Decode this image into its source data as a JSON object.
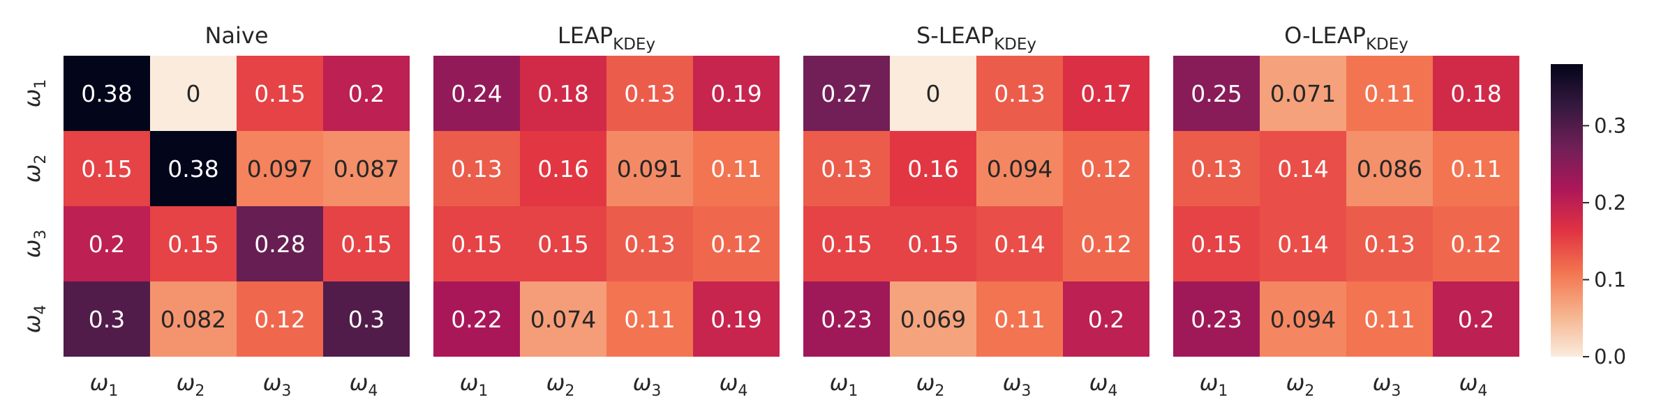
{
  "chart_data": [
    {
      "type": "heatmap",
      "title": "Naive",
      "title_main": "Naive",
      "title_sub": "",
      "x_tick_labels": [
        "ω1",
        "ω2",
        "ω3",
        "ω4"
      ],
      "y_tick_labels": [
        "ω1",
        "ω2",
        "ω3",
        "ω4"
      ],
      "values": [
        [
          0.38,
          0,
          0.15,
          0.2
        ],
        [
          0.15,
          0.38,
          0.097,
          0.087
        ],
        [
          0.2,
          0.15,
          0.28,
          0.15
        ],
        [
          0.3,
          0.082,
          0.12,
          0.3
        ]
      ],
      "cell_labels": [
        [
          "0.38",
          "0",
          "0.15",
          "0.2"
        ],
        [
          "0.15",
          "0.38",
          "0.097",
          "0.087"
        ],
        [
          "0.2",
          "0.15",
          "0.28",
          "0.15"
        ],
        [
          "0.3",
          "0.082",
          "0.12",
          "0.3"
        ]
      ]
    },
    {
      "type": "heatmap",
      "title": "LEAP_KDEy",
      "title_main": "LEAP",
      "title_sub": "KDEy",
      "x_tick_labels": [
        "ω1",
        "ω2",
        "ω3",
        "ω4"
      ],
      "y_tick_labels": [],
      "values": [
        [
          0.24,
          0.18,
          0.13,
          0.19
        ],
        [
          0.13,
          0.16,
          0.091,
          0.11
        ],
        [
          0.15,
          0.15,
          0.13,
          0.12
        ],
        [
          0.22,
          0.074,
          0.11,
          0.19
        ]
      ],
      "cell_labels": [
        [
          "0.24",
          "0.18",
          "0.13",
          "0.19"
        ],
        [
          "0.13",
          "0.16",
          "0.091",
          "0.11"
        ],
        [
          "0.15",
          "0.15",
          "0.13",
          "0.12"
        ],
        [
          "0.22",
          "0.074",
          "0.11",
          "0.19"
        ]
      ]
    },
    {
      "type": "heatmap",
      "title": "S-LEAP_KDEy",
      "title_main": "S-LEAP",
      "title_sub": "KDEy",
      "x_tick_labels": [
        "ω1",
        "ω2",
        "ω3",
        "ω4"
      ],
      "y_tick_labels": [],
      "values": [
        [
          0.27,
          0,
          0.13,
          0.17
        ],
        [
          0.13,
          0.16,
          0.094,
          0.12
        ],
        [
          0.15,
          0.15,
          0.14,
          0.12
        ],
        [
          0.23,
          0.069,
          0.11,
          0.2
        ]
      ],
      "cell_labels": [
        [
          "0.27",
          "0",
          "0.13",
          "0.17"
        ],
        [
          "0.13",
          "0.16",
          "0.094",
          "0.12"
        ],
        [
          "0.15",
          "0.15",
          "0.14",
          "0.12"
        ],
        [
          "0.23",
          "0.069",
          "0.11",
          "0.2"
        ]
      ]
    },
    {
      "type": "heatmap",
      "title": "O-LEAP_KDEy",
      "title_main": "O-LEAP",
      "title_sub": "KDEy",
      "x_tick_labels": [
        "ω1",
        "ω2",
        "ω3",
        "ω4"
      ],
      "y_tick_labels": [],
      "values": [
        [
          0.25,
          0.071,
          0.11,
          0.18
        ],
        [
          0.13,
          0.14,
          0.086,
          0.11
        ],
        [
          0.15,
          0.14,
          0.13,
          0.12
        ],
        [
          0.23,
          0.094,
          0.11,
          0.2
        ]
      ],
      "cell_labels": [
        [
          "0.25",
          "0.071",
          "0.11",
          "0.18"
        ],
        [
          "0.13",
          "0.14",
          "0.086",
          "0.11"
        ],
        [
          "0.15",
          "0.14",
          "0.13",
          "0.12"
        ],
        [
          "0.23",
          "0.094",
          "0.11",
          "0.2"
        ]
      ]
    }
  ],
  "colorbar": {
    "colormap": "rocket_r",
    "range": [
      0.0,
      0.38
    ],
    "ticks": [
      0.0,
      0.1,
      0.2,
      0.3
    ],
    "tick_labels": [
      "0.0",
      "0.1",
      "0.2",
      "0.3"
    ]
  },
  "colors": {
    "colormap_stops": [
      "#faebdd",
      "#f6b48e",
      "#f37651",
      "#e13342",
      "#ad1759",
      "#701f57",
      "#35193e",
      "#03051a"
    ],
    "text_dark": "#262626",
    "text_light": "#ffffff"
  }
}
